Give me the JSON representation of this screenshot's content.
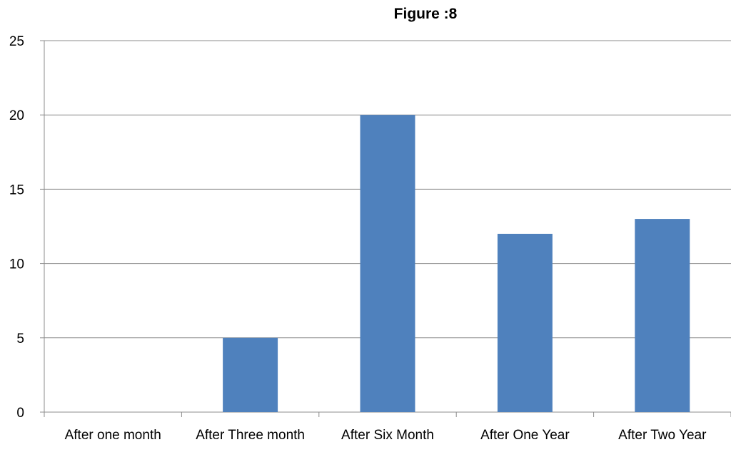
{
  "chart_data": {
    "type": "bar",
    "title": "Figure :8",
    "categories": [
      "After one month",
      "After Three month",
      "After Six Month",
      "After One Year",
      "After Two Year"
    ],
    "values": [
      0,
      5,
      20,
      12,
      13
    ],
    "ylim": [
      0,
      25
    ],
    "yticks": [
      0,
      5,
      10,
      15,
      20,
      25
    ],
    "grid": true,
    "legend": "none",
    "bar_color": "#4f81bd",
    "grid_color": "#8c8c8c",
    "axis_color": "#8c8c8c"
  }
}
